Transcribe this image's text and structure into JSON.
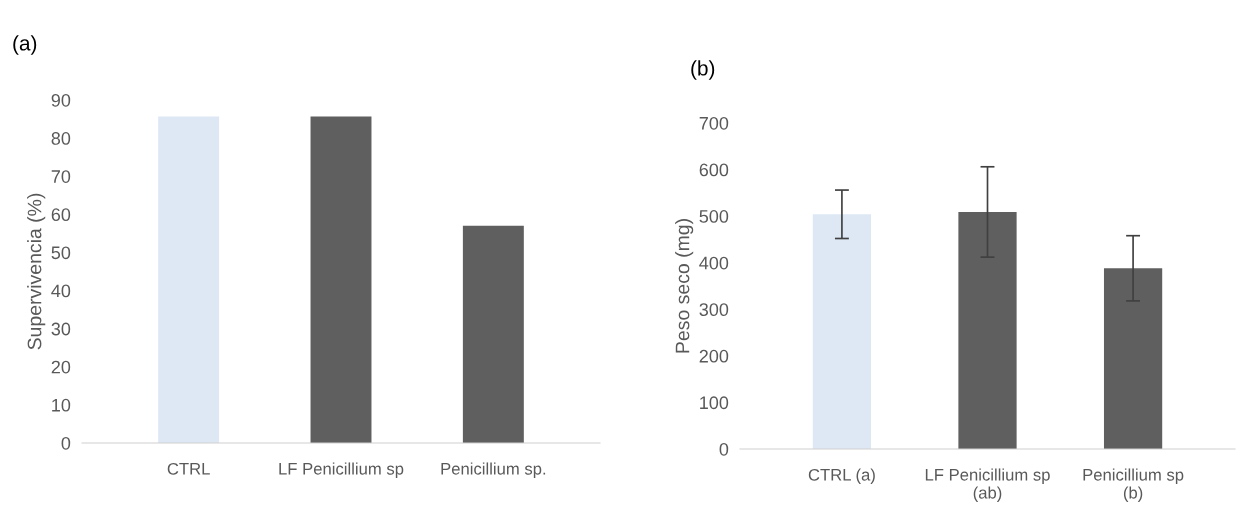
{
  "chart_data": [
    {
      "type": "bar",
      "title": "(a)",
      "ylabel": "Supervivencia (%)",
      "categories": [
        "CTRL",
        "LF Penicillium sp",
        "Penicillium sp."
      ],
      "values": [
        85.7,
        85.7,
        57.0
      ],
      "colors": [
        "#dde8f4",
        "#5f5f5f",
        "#5f5f5f"
      ],
      "ylim": [
        0,
        90
      ],
      "yticks": [
        0,
        10,
        20,
        30,
        40,
        50,
        60,
        70,
        80,
        90
      ],
      "grid": false
    },
    {
      "type": "bar",
      "title": "(b)",
      "ylabel": "Peso seco (mg)",
      "categories": [
        "CTRL (a)",
        "LF Penicillium sp\n(ab)",
        "Penicillium sp\n(b)"
      ],
      "values": [
        504,
        509,
        388
      ],
      "errors": [
        52,
        97,
        70
      ],
      "colors": [
        "#dde8f4",
        "#5f5f5f",
        "#5f5f5f"
      ],
      "ylim": [
        0,
        700
      ],
      "yticks": [
        0,
        100,
        200,
        300,
        400,
        500,
        600,
        700
      ],
      "grid": false
    }
  ]
}
